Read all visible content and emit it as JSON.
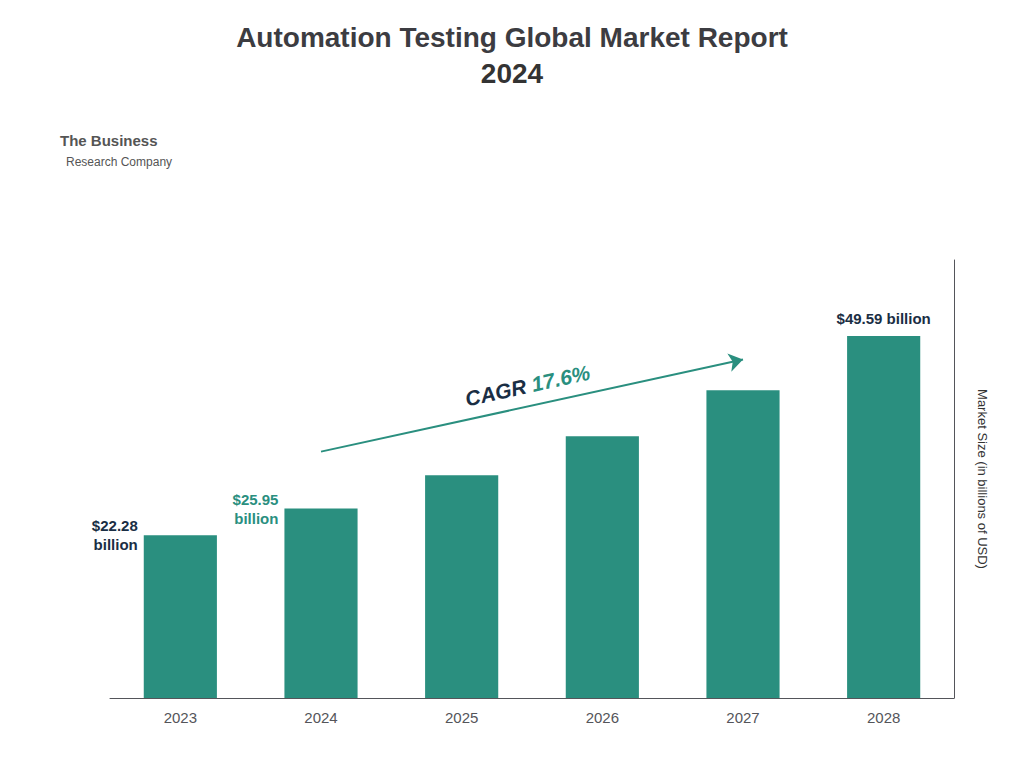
{
  "chart_data": {
    "type": "bar",
    "title": "Automation Testing Global Market Report",
    "subtitle": "2024",
    "categories": [
      "2023",
      "2024",
      "2025",
      "2026",
      "2027",
      "2028"
    ],
    "values": [
      22.28,
      25.95,
      30.52,
      35.87,
      42.16,
      49.59
    ],
    "color": "#2a8f7f",
    "ylabel": "Market Size (in billions of USD)",
    "ylim": [
      0,
      60
    ],
    "grid": false,
    "tick_labels": "x",
    "annotations": [
      {
        "category": "2023",
        "position": "left",
        "lines": [
          "$22.28",
          "billion"
        ],
        "color": "#1a2e44"
      },
      {
        "category": "2024",
        "position": "left",
        "lines": [
          "$25.95",
          "billion"
        ],
        "color": "#2a8f7f"
      },
      {
        "category": "2028",
        "position": "top",
        "lines": [
          "$49.59 billion"
        ],
        "color": "#1a2e44"
      },
      {
        "type": "arrow",
        "from": "2024",
        "to": "2027",
        "color": "#2a8f7f",
        "parts": [
          {
            "text": "CAGR ",
            "color": "#1a2e44"
          },
          {
            "text": "17.6%",
            "color": "#2a8f7f"
          }
        ]
      },
      {
        "lines": [
          "The Business",
          "Research Company"
        ],
        "color": "#555555"
      }
    ]
  }
}
